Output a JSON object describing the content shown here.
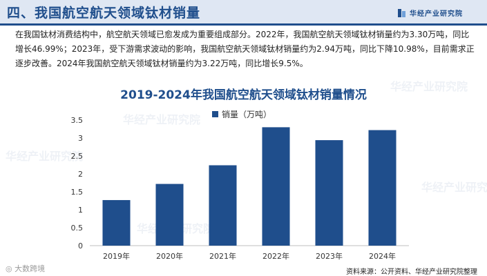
{
  "header": {
    "title": "四、我国航空航天领域钛材销量",
    "logo_text": "华经产业研究院"
  },
  "intro": "在我国钛材消费结构中，航空航天领域已愈发成为重要组成部分。2022年，我国航空航天领域钛材销量约为3.30万吨，同比增长46.99%；2023年，受下游需求波动的影响，我国航空航天领域钛材销量约为2.94万吨，同比下降10.98%，目前需求正逐步改善。2024年我国航空航天领域钛材销量约为3.22万吨，同比增长9.5%。",
  "watermark_text": "华经产业研究院",
  "footer_watermark": "大数跨境",
  "source": "资料来源：公开资料、华经产业研究院整理",
  "colors": {
    "bar": "#1f4e8c",
    "accent": "#1f4e8c"
  },
  "chart_data": {
    "type": "bar",
    "title": "2019-2024年我国航空航天领域钛材销量情况",
    "categories": [
      "2019年",
      "2020年",
      "2021年",
      "2022年",
      "2023年",
      "2024年"
    ],
    "series": [
      {
        "name": "销量（万吨）",
        "values": [
          1.27,
          1.72,
          2.24,
          3.3,
          2.94,
          3.22
        ]
      }
    ],
    "yticks": [
      "0",
      "0.5",
      "1",
      "1.5",
      "2",
      "2.5",
      "3",
      "3.5"
    ],
    "ylim": [
      0,
      3.5
    ],
    "xlabel": "",
    "ylabel": "",
    "grid": false,
    "legend": "top-center"
  }
}
